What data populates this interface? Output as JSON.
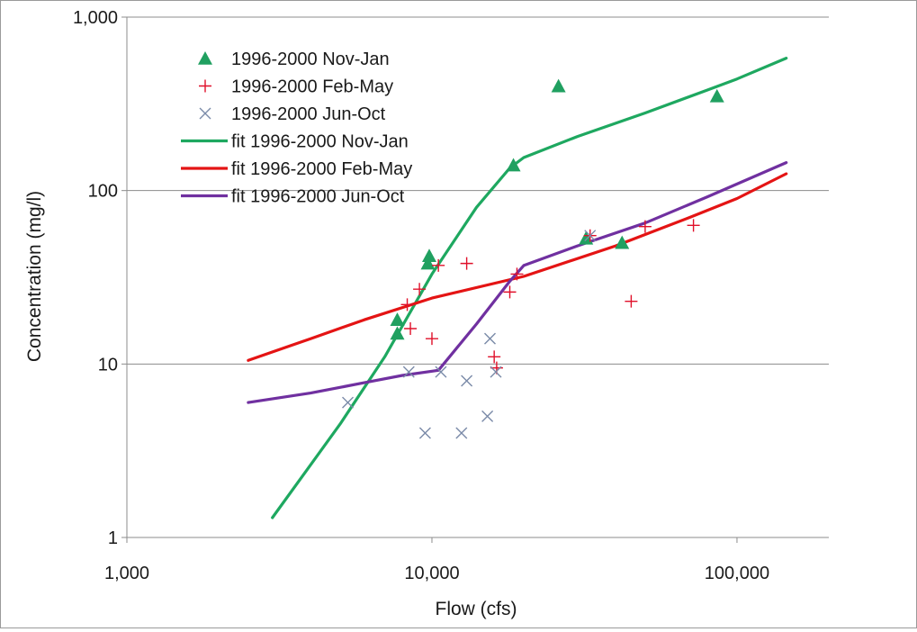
{
  "chart_data": {
    "type": "scatter",
    "title": "",
    "xlabel": "Flow (cfs)",
    "ylabel": "Concentration (mg/l)",
    "x_scale": "log",
    "y_scale": "log",
    "xlim": [
      1000,
      200000
    ],
    "ylim": [
      1,
      1000
    ],
    "x_ticks": [
      1000,
      10000,
      100000
    ],
    "x_tick_labels": [
      "1,000",
      "10,000",
      "100,000"
    ],
    "y_ticks": [
      1,
      10,
      100,
      1000
    ],
    "y_tick_labels": [
      "1",
      "10",
      "100",
      "1,000"
    ],
    "grid": "horizontal major",
    "legend_position": "top-left",
    "series": [
      {
        "name": "1996-2000 Nov-Jan",
        "kind": "points",
        "marker": "triangle",
        "color": "#20a060",
        "points": [
          [
            7700,
            15
          ],
          [
            7700,
            18
          ],
          [
            9700,
            38
          ],
          [
            9800,
            42
          ],
          [
            18500,
            140
          ],
          [
            26000,
            400
          ],
          [
            32000,
            53
          ],
          [
            42000,
            50
          ],
          [
            86000,
            350
          ]
        ]
      },
      {
        "name": "1996-2000 Feb-May",
        "kind": "points",
        "marker": "plus",
        "color": "#e0102a",
        "points": [
          [
            8300,
            22
          ],
          [
            8500,
            16
          ],
          [
            9100,
            27
          ],
          [
            10000,
            14
          ],
          [
            10500,
            37
          ],
          [
            13000,
            38
          ],
          [
            16000,
            11
          ],
          [
            16300,
            9.5
          ],
          [
            18000,
            26
          ],
          [
            19000,
            33
          ],
          [
            33000,
            55
          ],
          [
            45000,
            23
          ],
          [
            50000,
            62
          ],
          [
            72000,
            63
          ]
        ]
      },
      {
        "name": "1996-2000 Jun-Oct",
        "kind": "points",
        "marker": "x",
        "color": "#7a8aa8",
        "points": [
          [
            5300,
            6
          ],
          [
            8400,
            9
          ],
          [
            9500,
            4
          ],
          [
            10700,
            9
          ],
          [
            12500,
            4
          ],
          [
            13000,
            8
          ],
          [
            15200,
            5
          ],
          [
            15500,
            14
          ],
          [
            16200,
            9
          ],
          [
            33000,
            55
          ]
        ]
      },
      {
        "name": "fit 1996-2000 Nov-Jan",
        "kind": "line",
        "color": "#1ea860",
        "points": [
          [
            3000,
            1.3
          ],
          [
            5000,
            4.5
          ],
          [
            7000,
            11
          ],
          [
            10000,
            33
          ],
          [
            14000,
            80
          ],
          [
            18000,
            135
          ],
          [
            20000,
            155
          ],
          [
            30000,
            205
          ],
          [
            50000,
            280
          ],
          [
            80000,
            380
          ],
          [
            100000,
            440
          ],
          [
            145000,
            580
          ]
        ]
      },
      {
        "name": "fit 1996-2000 Feb-May",
        "kind": "line",
        "color": "#e41414",
        "points": [
          [
            2500,
            10.5
          ],
          [
            4000,
            14
          ],
          [
            6000,
            18
          ],
          [
            10000,
            24
          ],
          [
            20000,
            32
          ],
          [
            40000,
            48
          ],
          [
            70000,
            70
          ],
          [
            100000,
            90
          ],
          [
            145000,
            125
          ]
        ]
      },
      {
        "name": "fit 1996-2000 Jun-Oct",
        "kind": "line",
        "color": "#7030a0",
        "points": [
          [
            2500,
            6
          ],
          [
            4000,
            6.8
          ],
          [
            6000,
            7.8
          ],
          [
            8000,
            8.6
          ],
          [
            10500,
            9.2
          ],
          [
            14000,
            17
          ],
          [
            18000,
            30
          ],
          [
            20000,
            37
          ],
          [
            30000,
            48
          ],
          [
            50000,
            65
          ],
          [
            80000,
            92
          ],
          [
            145000,
            145
          ]
        ]
      }
    ]
  }
}
